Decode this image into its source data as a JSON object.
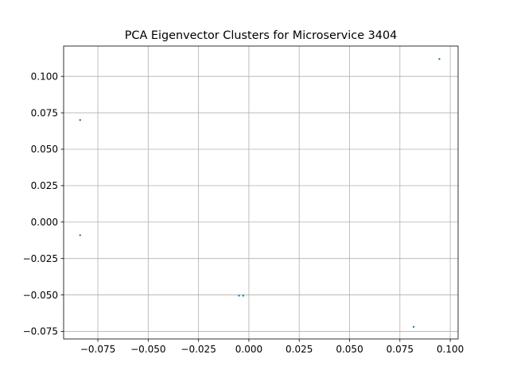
{
  "chart_data": {
    "type": "scatter",
    "title": "PCA Eigenvector Clusters for Microservice 3404",
    "xlabel": "",
    "ylabel": "",
    "xlim": [
      -0.092,
      0.1039
    ],
    "ylim": [
      -0.0802,
      0.1208
    ],
    "grid": true,
    "x_ticks": [
      -0.075,
      -0.05,
      -0.025,
      0.0,
      0.025,
      0.05,
      0.075,
      0.1
    ],
    "x_tick_labels": [
      "−0.075",
      "−0.050",
      "−0.025",
      "0.000",
      "0.025",
      "0.050",
      "0.075",
      "0.100"
    ],
    "y_ticks": [
      -0.075,
      -0.05,
      -0.025,
      0.0,
      0.025,
      0.05,
      0.075,
      0.1
    ],
    "y_tick_labels": [
      "−0.075",
      "−0.050",
      "−0.025",
      "0.000",
      "0.025",
      "0.050",
      "0.075",
      "0.100"
    ],
    "series": [
      {
        "color": "#1f77b4",
        "x": [
          0.0946,
          -0.0838,
          -0.0838,
          -0.0049,
          -0.0028,
          0.0818
        ],
        "y": [
          0.1119,
          0.07,
          -0.009,
          -0.0505,
          -0.0505,
          -0.0719
        ]
      }
    ]
  }
}
